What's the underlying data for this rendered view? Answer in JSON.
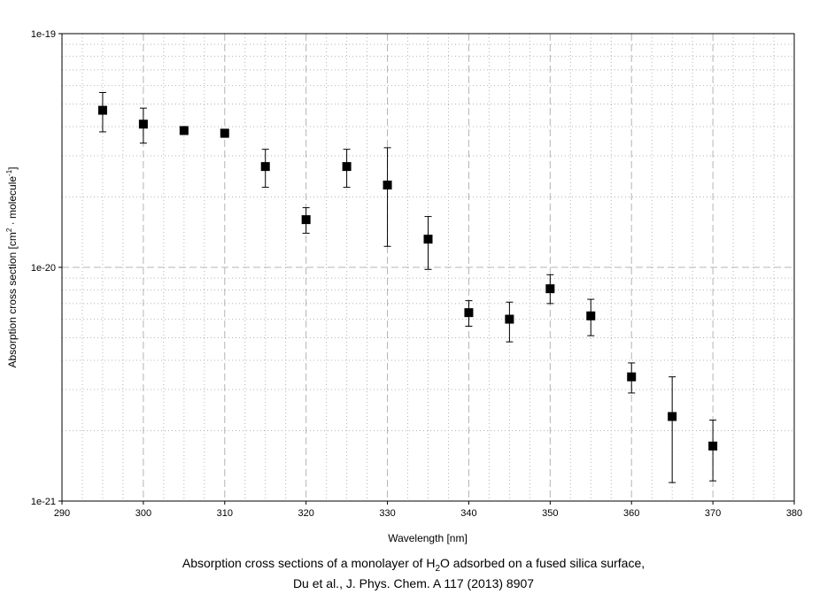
{
  "chart_data": {
    "type": "scatter",
    "title": "",
    "xlabel": "Wavelength [nm]",
    "ylabel": {
      "text_before_sup1": "Absorption cross section [cm",
      "sup1": "2",
      "text_between": " · molecule",
      "sup2": "-1",
      "text_after": "]"
    },
    "xlim": [
      290,
      380
    ],
    "ylim": [
      1e-21,
      1e-19
    ],
    "y_scale": "log",
    "grid": true,
    "x_ticks": [
      "290",
      "300",
      "310",
      "320",
      "330",
      "340",
      "350",
      "360",
      "370",
      "380"
    ],
    "y_ticks": [
      "1e-21",
      "1e-20",
      "1e-19"
    ],
    "points": [
      {
        "x": 295,
        "y": 4.7e-20,
        "lo": 3.8e-20,
        "hi": 5.6e-20
      },
      {
        "x": 300,
        "y": 4.1e-20,
        "lo": 3.4e-20,
        "hi": 4.8e-20
      },
      {
        "x": 305,
        "y": 3.85e-20,
        "lo": 3.7e-20,
        "hi": 4e-20
      },
      {
        "x": 310,
        "y": 3.75e-20,
        "lo": 3.6e-20,
        "hi": 3.9e-20
      },
      {
        "x": 315,
        "y": 2.7e-20,
        "lo": 2.2e-20,
        "hi": 3.2e-20
      },
      {
        "x": 320,
        "y": 1.6e-20,
        "lo": 1.4e-20,
        "hi": 1.8e-20
      },
      {
        "x": 325,
        "y": 2.7e-20,
        "lo": 2.2e-20,
        "hi": 3.2e-20
      },
      {
        "x": 330,
        "y": 2.25e-20,
        "lo": 1.23e-20,
        "hi": 3.25e-20
      },
      {
        "x": 335,
        "y": 1.32e-20,
        "lo": 9.8e-21,
        "hi": 1.65e-20
      },
      {
        "x": 340,
        "y": 6.4e-21,
        "lo": 5.6e-21,
        "hi": 7.2e-21
      },
      {
        "x": 345,
        "y": 6e-21,
        "lo": 4.8e-21,
        "hi": 7.1e-21
      },
      {
        "x": 350,
        "y": 8.1e-21,
        "lo": 7e-21,
        "hi": 9.3e-21
      },
      {
        "x": 355,
        "y": 6.2e-21,
        "lo": 5.1e-21,
        "hi": 7.3e-21
      },
      {
        "x": 360,
        "y": 3.4e-21,
        "lo": 2.9e-21,
        "hi": 3.9e-21
      },
      {
        "x": 365,
        "y": 2.3e-21,
        "lo": 1.2e-21,
        "hi": 3.4e-21
      },
      {
        "x": 370,
        "y": 1.72e-21,
        "lo": 1.22e-21,
        "hi": 2.22e-21
      }
    ],
    "marker": "square",
    "marker_color": "#000000",
    "grid_color": "#b4b4b4"
  },
  "caption": {
    "line1_before": "Absorption cross sections of a monolayer of H",
    "line1_sub": "2",
    "line1_after": "O adsorbed on a fused silica surface,",
    "line2": "Du et al., J. Phys. Chem. A 117 (2013) 8907"
  }
}
